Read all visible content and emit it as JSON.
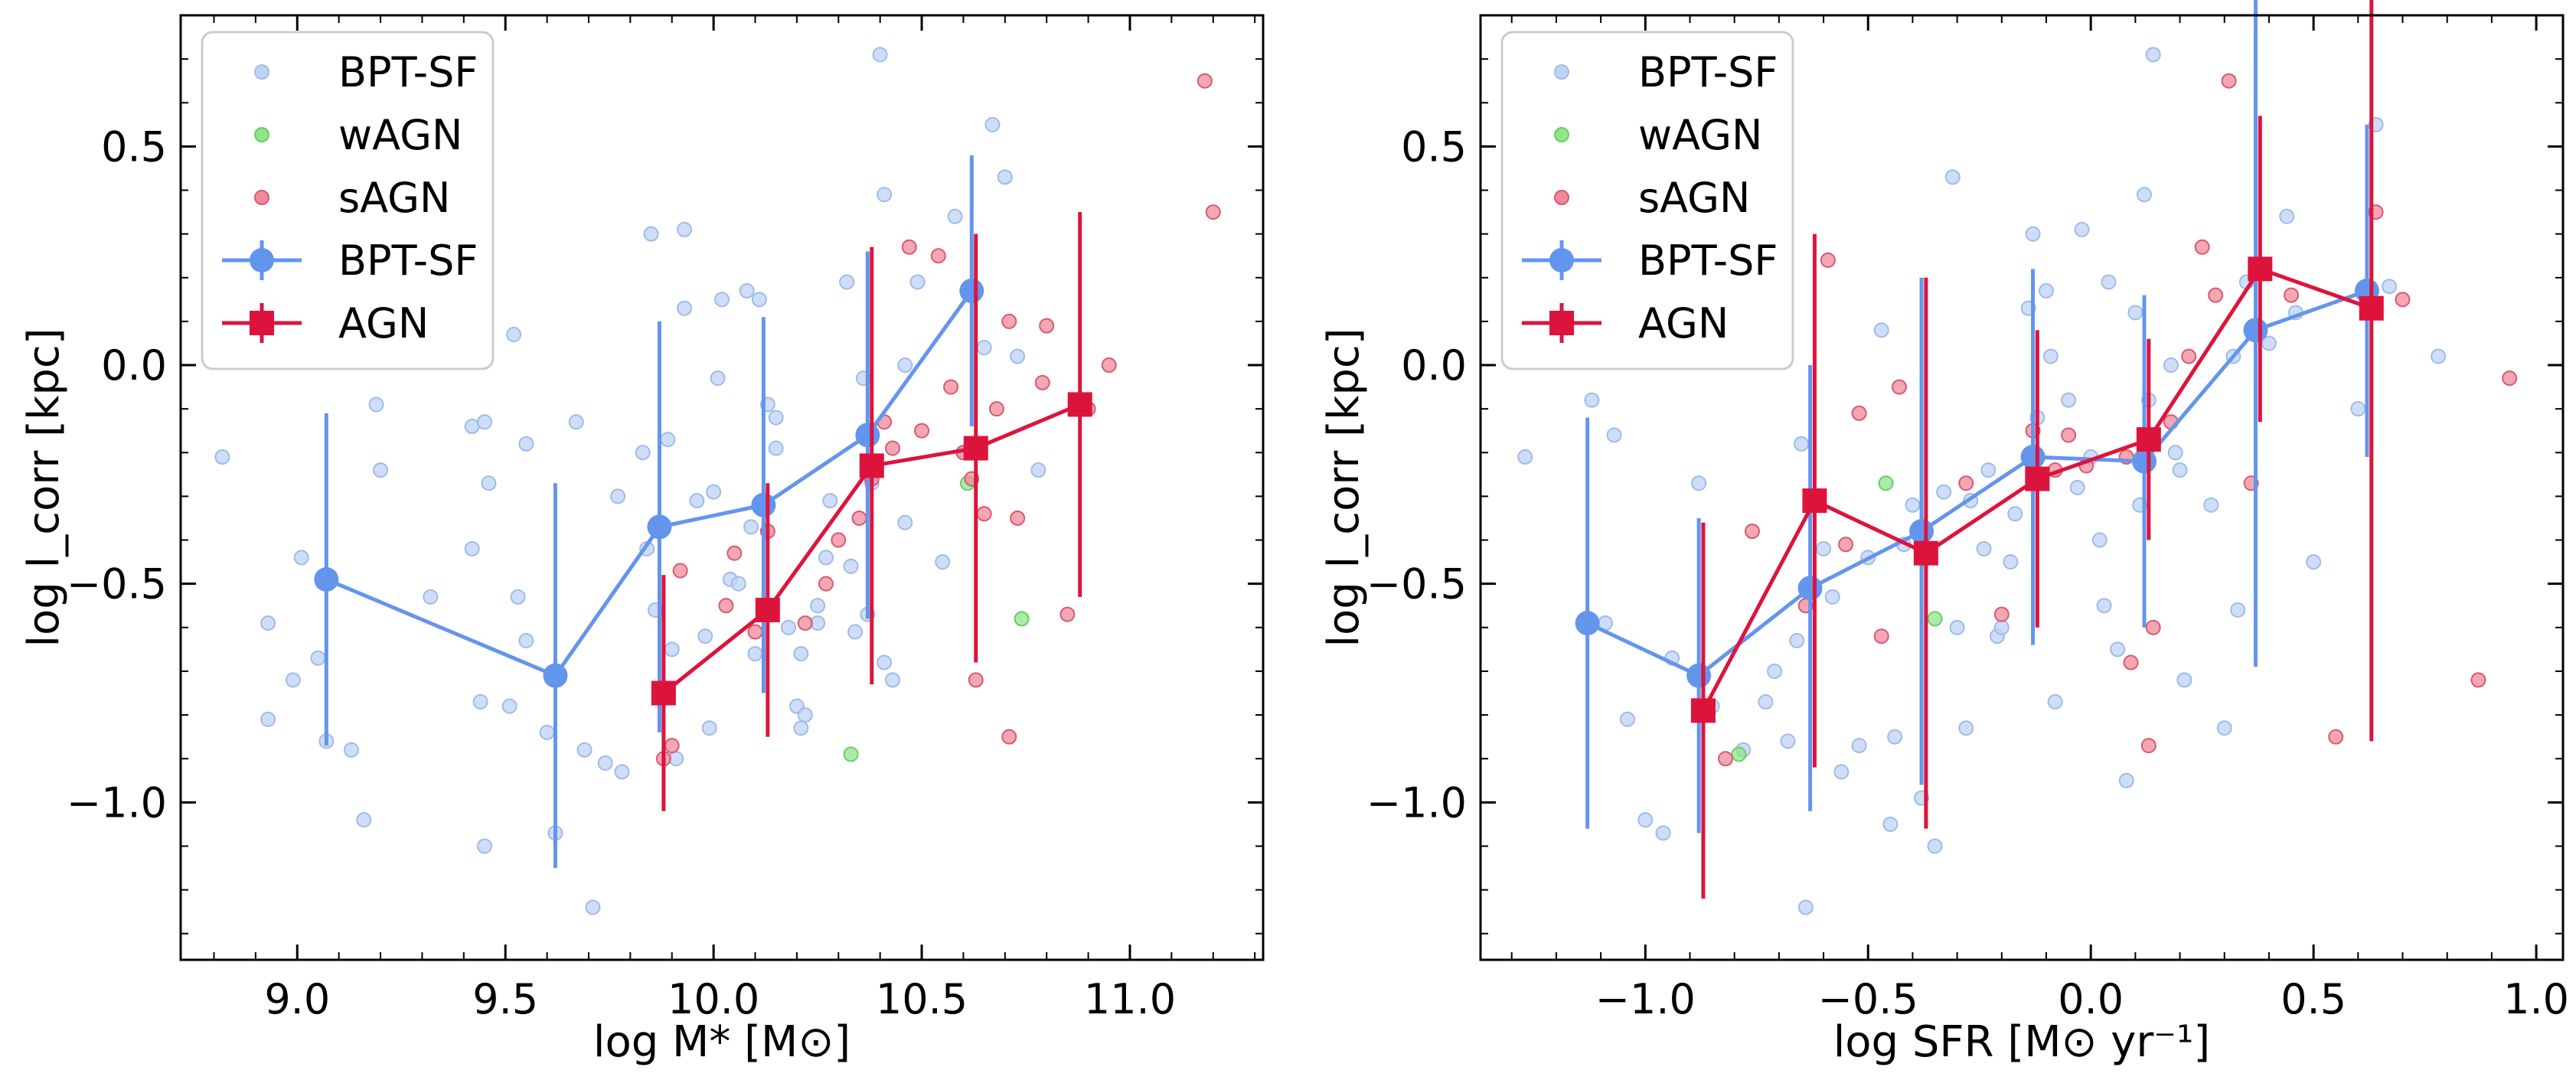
{
  "chart_data": [
    {
      "type": "scatter",
      "panel": "left",
      "xlabel": "log M* [M⊙]",
      "ylabel": "log l_corr [kpc]",
      "xlim": [
        8.72,
        11.32
      ],
      "ylim": [
        -1.36,
        0.8
      ],
      "xticks": [
        9.0,
        9.5,
        10.0,
        10.5,
        11.0
      ],
      "xtick_labels": [
        "9.0",
        "9.5",
        "10.0",
        "10.5",
        "11.0"
      ],
      "yticks": [
        0.5,
        0.0,
        -0.5,
        -1.0
      ],
      "ytick_labels": [
        "0.5",
        "0.0",
        "−0.5",
        "−1.0"
      ],
      "legend": {
        "placement": "top-left",
        "entries": [
          {
            "label": "BPT-SF",
            "kind": "point",
            "color": "#bfd3f5"
          },
          {
            "label": "wAGN",
            "kind": "point",
            "color": "#8fe68a"
          },
          {
            "label": "sAGN",
            "kind": "point",
            "color": "#f08a9a"
          },
          {
            "label": "BPT-SF",
            "kind": "binned-line",
            "color": "#6495ED"
          },
          {
            "label": "AGN",
            "kind": "binned-line",
            "color": "#DC143C"
          }
        ]
      },
      "scatter": {
        "BPT-SF": [
          [
            8.82,
            -0.21
          ],
          [
            8.93,
            -0.59
          ],
          [
            8.93,
            -0.81
          ],
          [
            8.99,
            -0.72
          ],
          [
            9.01,
            -0.44
          ],
          [
            9.07,
            -0.86
          ],
          [
            9.13,
            -0.88
          ],
          [
            9.05,
            -0.67
          ],
          [
            9.16,
            -1.04
          ],
          [
            9.19,
            -0.09
          ],
          [
            9.2,
            -0.24
          ],
          [
            9.32,
            -0.53
          ],
          [
            9.42,
            -0.42
          ],
          [
            9.42,
            -0.14
          ],
          [
            9.44,
            -0.77
          ],
          [
            9.45,
            -0.13
          ],
          [
            9.46,
            -0.27
          ],
          [
            9.45,
            -1.1
          ],
          [
            9.51,
            -0.78
          ],
          [
            9.53,
            -0.53
          ],
          [
            9.52,
            0.07
          ],
          [
            9.55,
            -0.18
          ],
          [
            9.55,
            -0.63
          ],
          [
            9.6,
            -0.84
          ],
          [
            9.62,
            -1.07
          ],
          [
            9.67,
            -0.13
          ],
          [
            9.69,
            -0.88
          ],
          [
            9.71,
            -1.24
          ],
          [
            9.74,
            -0.91
          ],
          [
            9.78,
            -0.93
          ],
          [
            9.77,
            -0.3
          ],
          [
            9.83,
            -0.2
          ],
          [
            9.84,
            -0.42
          ],
          [
            9.85,
            0.3
          ],
          [
            9.86,
            -0.56
          ],
          [
            9.87,
            -0.37
          ],
          [
            9.89,
            -0.17
          ],
          [
            9.9,
            -0.65
          ],
          [
            9.91,
            -0.9
          ],
          [
            9.93,
            0.13
          ],
          [
            9.93,
            0.31
          ],
          [
            9.96,
            -0.31
          ],
          [
            9.98,
            -0.62
          ],
          [
            9.99,
            -0.83
          ],
          [
            10.0,
            -0.29
          ],
          [
            10.01,
            -0.03
          ],
          [
            10.02,
            0.15
          ],
          [
            10.04,
            -0.49
          ],
          [
            10.06,
            -0.5
          ],
          [
            10.08,
            0.17
          ],
          [
            10.09,
            -0.37
          ],
          [
            10.11,
            0.15
          ],
          [
            10.1,
            -0.66
          ],
          [
            10.13,
            -0.09
          ],
          [
            10.15,
            -0.12
          ],
          [
            10.15,
            -0.19
          ],
          [
            10.18,
            -0.6
          ],
          [
            10.2,
            -0.78
          ],
          [
            10.21,
            -0.66
          ],
          [
            10.21,
            -0.83
          ],
          [
            10.22,
            -0.8
          ],
          [
            10.25,
            -0.59
          ],
          [
            10.25,
            -0.55
          ],
          [
            10.27,
            -0.44
          ],
          [
            10.28,
            -0.31
          ],
          [
            10.32,
            0.19
          ],
          [
            10.33,
            -0.46
          ],
          [
            10.34,
            -0.61
          ],
          [
            10.36,
            -0.03
          ],
          [
            10.37,
            -0.57
          ],
          [
            10.38,
            -0.27
          ],
          [
            10.4,
            0.71
          ],
          [
            10.41,
            -0.68
          ],
          [
            10.41,
            0.39
          ],
          [
            10.43,
            -0.72
          ],
          [
            10.46,
            -0.36
          ],
          [
            10.46,
            0.0
          ],
          [
            10.49,
            0.19
          ],
          [
            10.55,
            -0.45
          ],
          [
            10.58,
            0.34
          ],
          [
            10.6,
            -0.2
          ],
          [
            10.62,
            0.17
          ],
          [
            10.65,
            0.04
          ],
          [
            10.67,
            0.55
          ],
          [
            10.7,
            0.43
          ],
          [
            10.73,
            0.02
          ],
          [
            10.78,
            -0.24
          ]
        ],
        "wAGN": [
          [
            10.33,
            -0.89
          ],
          [
            10.61,
            -0.27
          ],
          [
            10.74,
            -0.58
          ]
        ],
        "sAGN": [
          [
            9.88,
            -0.9
          ],
          [
            9.9,
            -0.87
          ],
          [
            9.92,
            -0.47
          ],
          [
            10.03,
            -0.55
          ],
          [
            10.05,
            -0.43
          ],
          [
            10.1,
            -0.61
          ],
          [
            10.13,
            -0.38
          ],
          [
            10.22,
            -0.59
          ],
          [
            10.27,
            -0.5
          ],
          [
            10.3,
            -0.4
          ],
          [
            10.35,
            -0.35
          ],
          [
            10.38,
            -0.26
          ],
          [
            10.41,
            -0.13
          ],
          [
            10.43,
            -0.19
          ],
          [
            10.47,
            0.27
          ],
          [
            10.5,
            -0.15
          ],
          [
            10.54,
            0.25
          ],
          [
            10.57,
            -0.05
          ],
          [
            10.6,
            -0.2
          ],
          [
            10.62,
            -0.26
          ],
          [
            10.63,
            -0.72
          ],
          [
            10.65,
            -0.34
          ],
          [
            10.68,
            -0.1
          ],
          [
            10.71,
            0.1
          ],
          [
            10.73,
            -0.35
          ],
          [
            10.8,
            0.09
          ],
          [
            10.79,
            -0.04
          ],
          [
            10.85,
            -0.57
          ],
          [
            10.9,
            -0.1
          ],
          [
            10.95,
            0.0
          ],
          [
            11.18,
            0.65
          ],
          [
            11.2,
            0.35
          ],
          [
            10.71,
            -0.85
          ]
        ]
      },
      "binned": [
        {
          "name": "BPT-SF",
          "marker": "circle",
          "x": [
            9.07,
            9.62,
            9.87,
            10.12,
            10.37,
            10.62
          ],
          "y": [
            -0.49,
            -0.71,
            -0.37,
            -0.32,
            -0.16,
            0.17
          ],
          "yerr": [
            0.38,
            0.44,
            0.47,
            0.43,
            0.42,
            0.31
          ]
        },
        {
          "name": "AGN",
          "marker": "square",
          "x": [
            9.88,
            10.13,
            10.38,
            10.63,
            10.88
          ],
          "y": [
            -0.75,
            -0.56,
            -0.23,
            -0.19,
            -0.09
          ],
          "yerr": [
            0.27,
            0.29,
            0.5,
            0.49,
            0.44
          ]
        }
      ]
    },
    {
      "type": "scatter",
      "panel": "right",
      "xlabel": "log SFR [M⊙ yr⁻¹]",
      "ylabel": "log l_corr [kpc]",
      "xlim": [
        -1.37,
        1.06
      ],
      "ylim": [
        -1.36,
        0.8
      ],
      "xticks": [
        -1.0,
        -0.5,
        0.0,
        0.5,
        1.0
      ],
      "xtick_labels": [
        "−1.0",
        "−0.5",
        "0.0",
        "0.5",
        "1.0"
      ],
      "yticks": [
        0.5,
        0.0,
        -0.5,
        -1.0
      ],
      "ytick_labels": [
        "0.5",
        "0.0",
        "−0.5",
        "−1.0"
      ],
      "legend": {
        "placement": "top-left",
        "entries": [
          {
            "label": "BPT-SF",
            "kind": "point",
            "color": "#bfd3f5"
          },
          {
            "label": "wAGN",
            "kind": "point",
            "color": "#8fe68a"
          },
          {
            "label": "sAGN",
            "kind": "point",
            "color": "#f08a9a"
          },
          {
            "label": "BPT-SF",
            "kind": "binned-line",
            "color": "#6495ED"
          },
          {
            "label": "AGN",
            "kind": "binned-line",
            "color": "#DC143C"
          }
        ]
      },
      "scatter": {
        "BPT-SF": [
          [
            -1.27,
            -0.21
          ],
          [
            -1.12,
            -0.08
          ],
          [
            -1.09,
            -0.59
          ],
          [
            -1.07,
            -0.16
          ],
          [
            -1.04,
            -0.81
          ],
          [
            -1.0,
            -1.04
          ],
          [
            -0.96,
            -1.07
          ],
          [
            -0.94,
            -0.67
          ],
          [
            -0.88,
            -0.27
          ],
          [
            -0.85,
            -0.78
          ],
          [
            -0.78,
            -0.88
          ],
          [
            -0.73,
            -0.77
          ],
          [
            -0.71,
            -0.7
          ],
          [
            -0.68,
            -0.86
          ],
          [
            -0.66,
            -0.63
          ],
          [
            -0.65,
            -0.18
          ],
          [
            -0.64,
            -1.24
          ],
          [
            -0.6,
            -0.42
          ],
          [
            -0.58,
            -0.53
          ],
          [
            -0.56,
            -0.93
          ],
          [
            -0.52,
            -0.87
          ],
          [
            -0.5,
            -0.44
          ],
          [
            -0.47,
            0.08
          ],
          [
            -0.45,
            -1.05
          ],
          [
            -0.44,
            -0.85
          ],
          [
            -0.42,
            -0.41
          ],
          [
            -0.4,
            -0.32
          ],
          [
            -0.38,
            -0.99
          ],
          [
            -0.35,
            -1.1
          ],
          [
            -0.33,
            -0.29
          ],
          [
            -0.31,
            0.43
          ],
          [
            -0.3,
            -0.6
          ],
          [
            -0.28,
            -0.83
          ],
          [
            -0.27,
            -0.31
          ],
          [
            -0.24,
            -0.42
          ],
          [
            -0.23,
            -0.24
          ],
          [
            -0.21,
            -0.62
          ],
          [
            -0.2,
            -0.6
          ],
          [
            -0.18,
            -0.45
          ],
          [
            -0.17,
            -0.34
          ],
          [
            -0.14,
            0.13
          ],
          [
            -0.13,
            0.3
          ],
          [
            -0.12,
            -0.12
          ],
          [
            -0.1,
            0.17
          ],
          [
            -0.09,
            0.02
          ],
          [
            -0.08,
            -0.77
          ],
          [
            -0.05,
            -0.08
          ],
          [
            -0.03,
            -0.28
          ],
          [
            -0.02,
            0.31
          ],
          [
            0.0,
            -0.21
          ],
          [
            0.02,
            -0.4
          ],
          [
            0.03,
            -0.55
          ],
          [
            0.04,
            0.19
          ],
          [
            0.06,
            -0.65
          ],
          [
            0.08,
            -0.95
          ],
          [
            0.1,
            0.12
          ],
          [
            0.11,
            -0.32
          ],
          [
            0.12,
            0.39
          ],
          [
            0.13,
            -0.08
          ],
          [
            0.14,
            0.71
          ],
          [
            0.18,
            0.0
          ],
          [
            0.19,
            -0.2
          ],
          [
            0.2,
            -0.24
          ],
          [
            0.21,
            -0.72
          ],
          [
            0.27,
            -0.32
          ],
          [
            0.3,
            -0.83
          ],
          [
            0.32,
            0.02
          ],
          [
            0.33,
            -0.56
          ],
          [
            0.35,
            0.19
          ],
          [
            0.4,
            0.05
          ],
          [
            0.44,
            0.34
          ],
          [
            0.46,
            0.12
          ],
          [
            0.5,
            -0.45
          ],
          [
            0.6,
            -0.1
          ],
          [
            0.64,
            0.55
          ],
          [
            0.67,
            0.18
          ],
          [
            0.78,
            0.02
          ]
        ],
        "wAGN": [
          [
            -0.79,
            -0.89
          ],
          [
            -0.46,
            -0.27
          ],
          [
            -0.35,
            -0.58
          ]
        ],
        "sAGN": [
          [
            -0.82,
            -0.9
          ],
          [
            -0.76,
            -0.38
          ],
          [
            -0.64,
            -0.55
          ],
          [
            -0.59,
            0.24
          ],
          [
            -0.55,
            -0.41
          ],
          [
            -0.52,
            -0.11
          ],
          [
            -0.47,
            -0.62
          ],
          [
            -0.43,
            -0.05
          ],
          [
            -0.28,
            -0.27
          ],
          [
            -0.2,
            -0.57
          ],
          [
            -0.13,
            -0.15
          ],
          [
            -0.08,
            -0.24
          ],
          [
            -0.05,
            -0.16
          ],
          [
            -0.01,
            -0.23
          ],
          [
            0.08,
            -0.21
          ],
          [
            0.09,
            -0.68
          ],
          [
            0.13,
            -0.87
          ],
          [
            0.14,
            -0.6
          ],
          [
            0.18,
            -0.13
          ],
          [
            0.22,
            0.02
          ],
          [
            0.25,
            0.27
          ],
          [
            0.28,
            0.16
          ],
          [
            0.31,
            0.65
          ],
          [
            0.36,
            -0.27
          ],
          [
            0.45,
            0.16
          ],
          [
            0.55,
            -0.85
          ],
          [
            0.64,
            0.35
          ],
          [
            0.7,
            0.15
          ],
          [
            0.87,
            -0.72
          ],
          [
            0.94,
            -0.03
          ]
        ]
      },
      "binned": [
        {
          "name": "BPT-SF",
          "marker": "circle",
          "x": [
            -1.13,
            -0.88,
            -0.63,
            -0.38,
            -0.13,
            0.12,
            0.37,
            0.62
          ],
          "y": [
            -0.59,
            -0.71,
            -0.51,
            -0.38,
            -0.21,
            -0.22,
            0.08,
            0.17
          ],
          "yerr": [
            0.47,
            0.36,
            0.51,
            0.58,
            0.43,
            0.38,
            0.77,
            0.38
          ]
        },
        {
          "name": "AGN",
          "marker": "square",
          "x": [
            -0.87,
            -0.62,
            -0.37,
            -0.12,
            0.13,
            0.38,
            0.63
          ],
          "y": [
            -0.79,
            -0.31,
            -0.43,
            -0.26,
            -0.17,
            0.22,
            0.13
          ],
          "yerr": [
            0.43,
            0.61,
            0.63,
            0.34,
            0.23,
            0.35,
            0.99
          ]
        }
      ]
    }
  ]
}
